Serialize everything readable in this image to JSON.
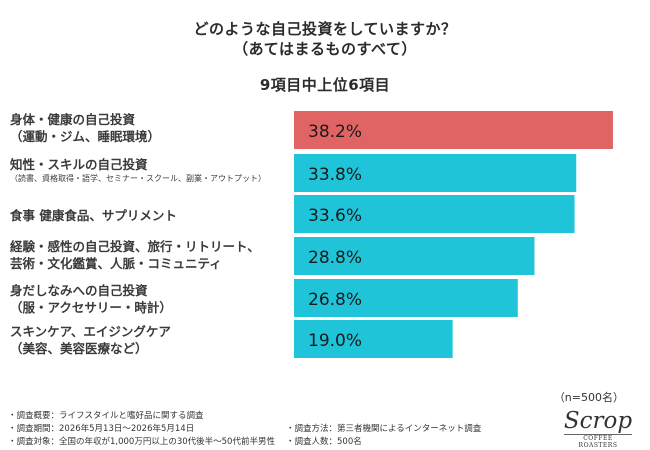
{
  "title_line1": "どのような自己投資をしていますか？",
  "title_line2": "（あてはまるものすべて）",
  "subtitle": "9項目中上位6項目",
  "sample_note": "（n=500名）",
  "colors": {
    "highlight": "#e06464",
    "bar": "#1fc4d9",
    "value_text": "#1a1a1a"
  },
  "labels": [
    {
      "line1": "身体・健康の自己投資",
      "line2": "（運動・ジム、睡眠環境）",
      "small": ""
    },
    {
      "line1": "知性・スキルの自己投資",
      "line2": "",
      "small": "（読書、資格取得・語学、セミナー・スクール、副業・アウトプット）"
    },
    {
      "line1": "食事 健康食品、サプリメント",
      "line2": "",
      "small": ""
    },
    {
      "line1": "経験・感性の自己投資、旅行・リトリート、",
      "line2": "芸術・文化鑑賞、人脈・コミュニティ",
      "small": ""
    },
    {
      "line1": "身だしなみへの自己投資",
      "line2": "（服・アクセサリー・時計）",
      "small": ""
    },
    {
      "line1": "スキンケア、エイジングケア",
      "line2": "（美容、美容医療など）",
      "small": ""
    }
  ],
  "chart_data": {
    "type": "bar",
    "orientation": "horizontal",
    "title": "どのような自己投資をしていますか？（あてはまるものすべて）",
    "subtitle": "9項目中上位6項目",
    "categories": [
      "身体・健康の自己投資（運動・ジム、睡眠環境）",
      "知性・スキルの自己投資（読書、資格取得・語学、セミナー・スクール、副業・アウトプット）",
      "食事 健康食品、サプリメント",
      "経験・感性の自己投資、旅行・リトリート、芸術・文化鑑賞、人脈・コミュニティ",
      "身だしなみへの自己投資（服・アクセサリー・時計）",
      "スキンケア、エイジングケア（美容、美容医療など）"
    ],
    "values": [
      38.2,
      33.8,
      33.6,
      28.8,
      26.8,
      19.0
    ],
    "value_labels": [
      "38.2%",
      "33.8%",
      "33.6%",
      "28.8%",
      "26.8%",
      "19.0%"
    ],
    "unit": "%",
    "highlight_index": 0,
    "xlim": [
      0,
      40
    ],
    "grid": false,
    "legend": "none"
  },
  "footer": {
    "left": [
      "・調査概要：ライフスタイルと嗜好品に関する調査",
      "・調査期間：2026年5月13日～2026年5月14日",
      "・調査対象：全国の年収が1,000万円以上の30代後半～50代前半男性"
    ],
    "right": [
      "・調査方法：第三者機関によるインターネット調査",
      "・調査人数：500名"
    ]
  },
  "logo": {
    "name": "Scrop",
    "tagline": "COFFEE ROASTERS"
  }
}
